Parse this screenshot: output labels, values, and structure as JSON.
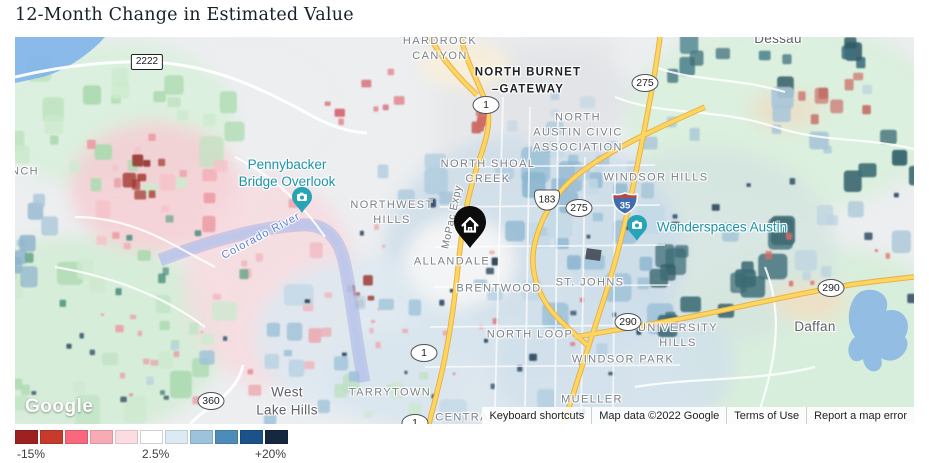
{
  "title": "12-Month Change in Estimated Value",
  "legend": {
    "colors": [
      "#9e2121",
      "#c63b2b",
      "#f9687c",
      "#f9abb5",
      "#fcdce1",
      "#ffffff",
      "#dcebf3",
      "#9cc3dc",
      "#4d8cb8",
      "#1b5289",
      "#15283f"
    ],
    "min_label": "-15%",
    "mid_label": "2.5%",
    "max_label": "+20%"
  },
  "map": {
    "area_labels": [
      "HARDROCK\nCANYON",
      "NORTH SHOAL\nCREEK",
      "NORTHWEST\nHILLS",
      "NORTH\nAUSTIN CIVIC\nASSOCIATION",
      "WINDSOR HILLS",
      "ALLANDALE",
      "BRENTWOOD",
      "ST. JOHNS",
      "NORTH LOOP",
      "UNIVERSITY\nHILLS",
      "WINDSOR PARK",
      "MUELLER",
      "TARRYTOWN",
      "CENTRAL AUST",
      "NCH"
    ],
    "city_labels": [
      "Dessau",
      "Daffan",
      "West\nLake Hills"
    ],
    "poi_labels": [
      "Pennybacker\nBridge Overlook",
      "Wonderspaces Austin"
    ],
    "district_label": "NORTH BURNET\n–GATEWAY",
    "road_labels": {
      "mopac": "MoPac Expy",
      "colorado_river": "Colorado River"
    },
    "shields": {
      "s2222": "2222",
      "s275a": "275",
      "s1a": "1",
      "s183": "183",
      "s275b": "275",
      "s35": "35",
      "s290a": "290",
      "s290b": "290",
      "s1b": "1",
      "s360": "360",
      "s1c": "1"
    },
    "google_logo": "Google",
    "attribution": {
      "keyboard": "Keyboard shortcuts",
      "mapdata": "Map data ©2022 Google",
      "terms": "Terms of Use",
      "report": "Report a map error"
    }
  }
}
